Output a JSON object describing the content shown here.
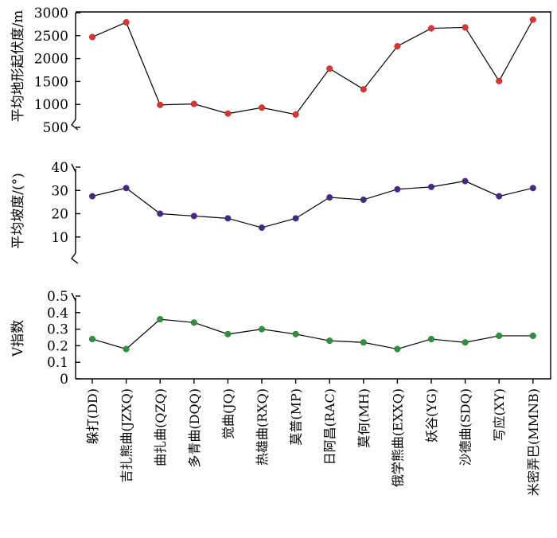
{
  "chart_data": {
    "type": "line",
    "categories": [
      "躲打(DD)",
      "吉扎熊曲(JZXQ)",
      "曲扎曲(QZQ)",
      "多青曲(DQQ)",
      "觉曲(JQ)",
      "热雄曲(RXQ)",
      "莫普(MP)",
      "日阿昌(RAC)",
      "莫何(MH)",
      "俄学熊曲(EXXQ)",
      "妖谷(YG)",
      "沙德曲(SDQ)",
      "写应(XY)",
      "米密弄巴(MMNB)"
    ],
    "panels": [
      {
        "ylabel": "平均地形起伏度/m",
        "ylim": [
          500,
          3000
        ],
        "yticks": [
          "500",
          "1000",
          "1500",
          "2000",
          "2500",
          "3000"
        ],
        "color": "#e0332f",
        "values": [
          2470,
          2790,
          990,
          1010,
          800,
          930,
          780,
          1780,
          1330,
          2270,
          2660,
          2680,
          1510,
          2850
        ]
      },
      {
        "ylabel": "平均坡度/(°)",
        "ylim": [
          0,
          40
        ],
        "yticks": [
          "10",
          "20",
          "30",
          "40"
        ],
        "color": "#3b2c8f",
        "values": [
          27.5,
          31,
          20,
          19,
          18,
          14,
          18,
          27,
          26,
          30.5,
          31.5,
          34,
          27.5,
          31
        ]
      },
      {
        "ylabel": "V指数",
        "ylim": [
          0,
          0.5
        ],
        "yticks": [
          "0",
          "0.1",
          "0.2",
          "0.3",
          "0.4",
          "0.5"
        ],
        "color": "#1e9a3c",
        "values": [
          0.24,
          0.18,
          0.36,
          0.34,
          0.27,
          0.3,
          0.27,
          0.23,
          0.22,
          0.18,
          0.24,
          0.22,
          0.26,
          0.26
        ]
      }
    ]
  }
}
